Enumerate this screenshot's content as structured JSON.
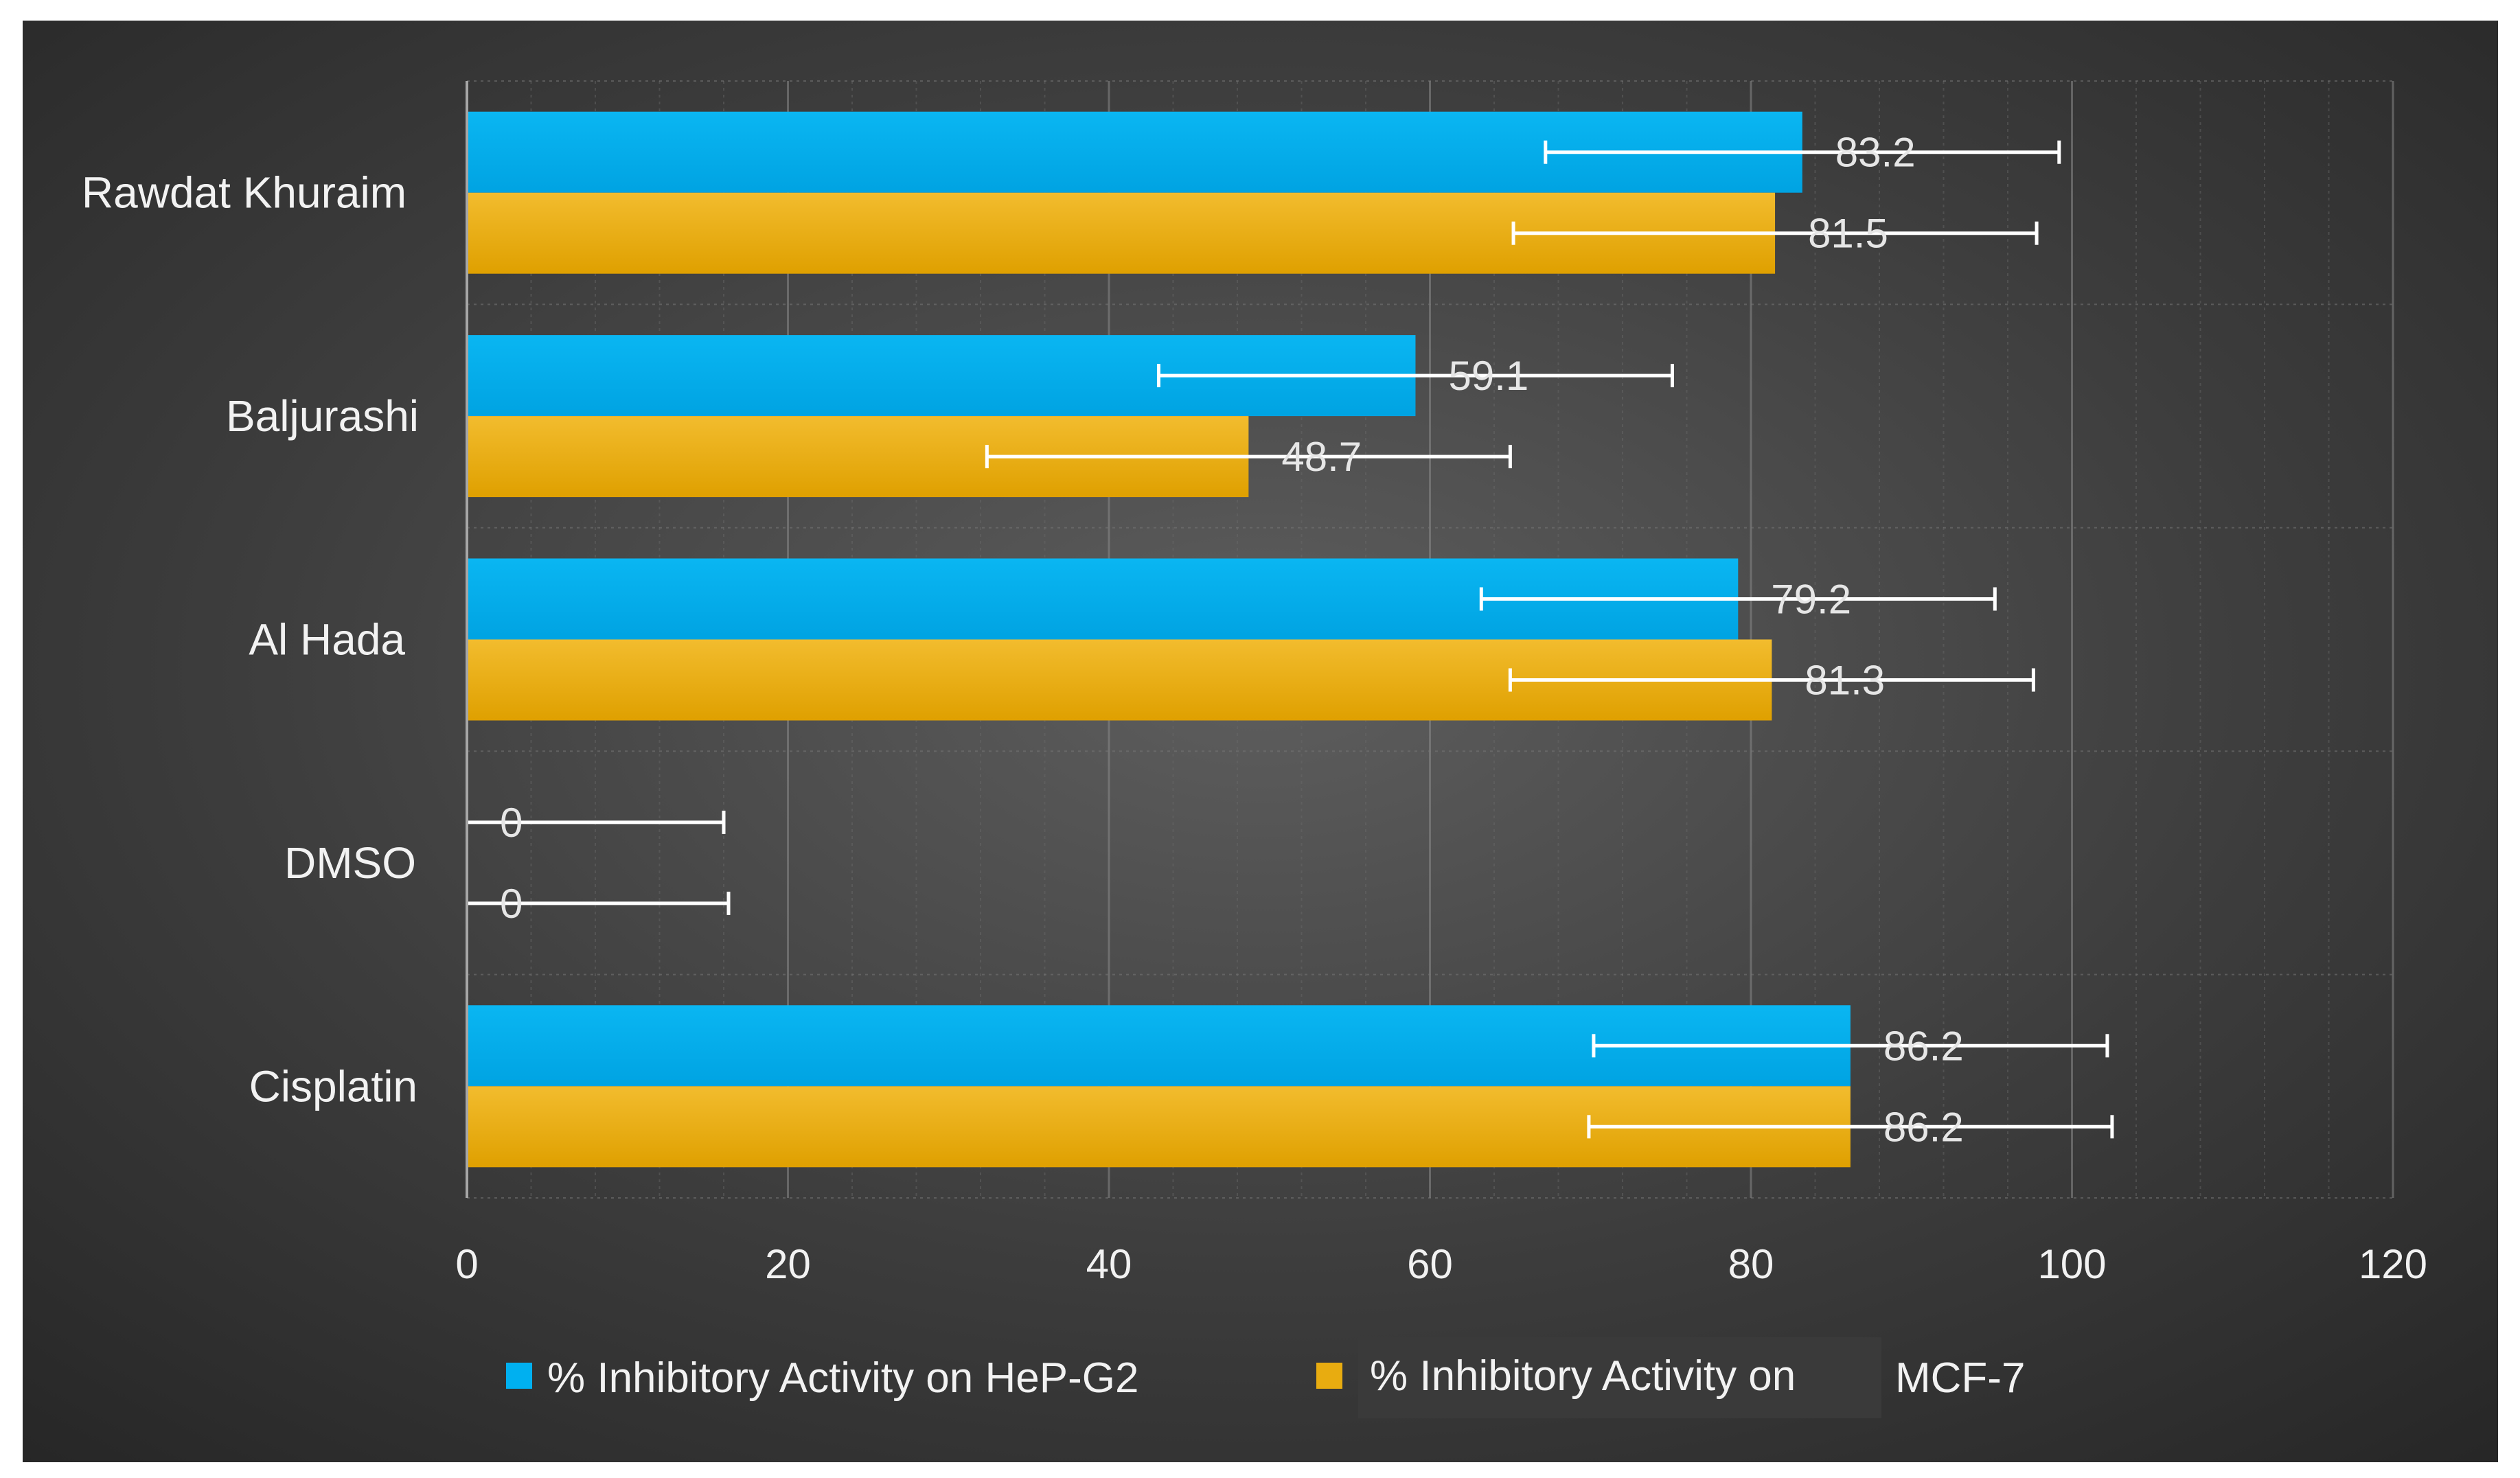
{
  "chart_data": {
    "type": "bar",
    "orientation": "horizontal",
    "title": "",
    "xlabel": "",
    "ylabel": "",
    "xlim": [
      0,
      120
    ],
    "x_ticks": [
      "0",
      "20",
      "40",
      "60",
      "80",
      "100",
      "120"
    ],
    "categories": [
      "Rawdat Khuraim",
      "Baljurashi",
      "Al Hada",
      "DMSO",
      "Cisplatin"
    ],
    "series": [
      {
        "name": "% Inhibitory Activity on HeP-G2",
        "color": "#00b0f0",
        "values": [
          83.2,
          59.1,
          79.2,
          0,
          86.2
        ],
        "labels": [
          "83.2",
          "59.1",
          "79.2",
          "0",
          "86.2"
        ],
        "error": [
          16,
          16,
          16,
          16,
          16
        ]
      },
      {
        "name_part1": "% Inhibitory Activity on",
        "name_part2": "MCF-7",
        "color": "#e8ac10",
        "values": [
          81.5,
          48.7,
          81.3,
          0,
          86.2
        ],
        "labels": [
          "81.5",
          "48.7",
          "81.3",
          "0",
          "86.2"
        ],
        "error": [
          16.3,
          16.3,
          16.3,
          16.3,
          16.3
        ]
      }
    ],
    "legend_position": "bottom",
    "grid": true
  }
}
